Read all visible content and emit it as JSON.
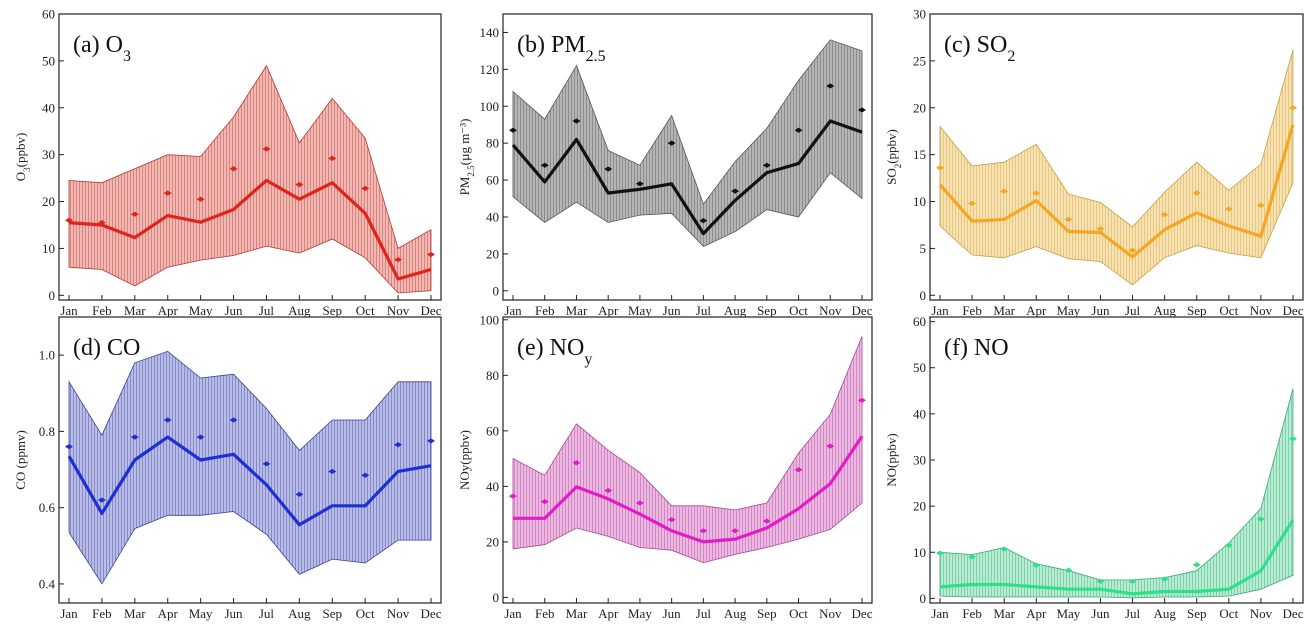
{
  "figure": {
    "months": [
      "Jan",
      "Feb",
      "Mar",
      "Apr",
      "May",
      "Jun",
      "Jul",
      "Aug",
      "Sep",
      "Oct",
      "Nov",
      "Dec"
    ]
  },
  "chart_data": [
    {
      "id": "o3",
      "type": "line",
      "title": "(a) O",
      "title_sub": "3",
      "ylabel": "O",
      "ylabel_sub": "3",
      "ylabel_tail": "(ppbv)",
      "ylim": [
        -1,
        60
      ],
      "yticks": [
        0,
        10,
        20,
        30,
        40,
        50,
        60
      ],
      "colors": {
        "line": "#e0231b",
        "fill": "#f2b8b4",
        "stroke": "#b23a33",
        "diamond": "#e0231b"
      },
      "series": [
        {
          "name": "mean",
          "values": [
            15.5,
            15.0,
            12.3,
            17.0,
            15.6,
            18.3,
            24.5,
            20.5,
            24.0,
            17.5,
            3.5,
            5.5
          ]
        },
        {
          "name": "upper",
          "values": [
            24.5,
            24.0,
            27.0,
            30.0,
            29.6,
            38.0,
            49.0,
            32.5,
            42.0,
            33.5,
            10.0,
            14.0
          ]
        },
        {
          "name": "lower",
          "values": [
            6.0,
            5.5,
            2.0,
            6.0,
            7.5,
            8.5,
            10.5,
            9.0,
            12.0,
            8.0,
            0.5,
            1.0
          ]
        },
        {
          "name": "point",
          "values": [
            16.0,
            15.5,
            17.3,
            21.8,
            20.5,
            27.0,
            31.2,
            23.6,
            29.2,
            22.8,
            7.6,
            8.7
          ]
        }
      ]
    },
    {
      "id": "pm25",
      "type": "line",
      "title": "(b) PM",
      "title_sub": "2.5",
      "ylabel": "PM",
      "ylabel_sub": "2.5",
      "ylabel_tail": "(µg m⁻³)",
      "ylim": [
        -5,
        150
      ],
      "yticks": [
        0,
        20,
        40,
        60,
        80,
        100,
        120,
        140
      ],
      "colors": {
        "line": "#111111",
        "fill": "#b5b5b5",
        "stroke": "#555555",
        "diamond": "#111111"
      },
      "series": [
        {
          "name": "mean",
          "values": [
            79,
            59,
            82,
            53,
            55,
            58,
            31,
            49,
            64,
            69,
            92,
            86
          ]
        },
        {
          "name": "upper",
          "values": [
            108,
            93,
            122,
            76,
            68,
            95,
            47,
            70,
            88,
            114,
            136,
            130
          ]
        },
        {
          "name": "lower",
          "values": [
            51,
            37,
            48,
            37,
            41,
            42,
            24,
            32,
            44,
            40,
            64,
            50
          ]
        },
        {
          "name": "point",
          "values": [
            87,
            68,
            92,
            66,
            58,
            80,
            38,
            54,
            68,
            87,
            111,
            98
          ]
        }
      ]
    },
    {
      "id": "so2",
      "type": "line",
      "title": "(c) SO",
      "title_sub": "2",
      "ylabel": "SO",
      "ylabel_sub": "2",
      "ylabel_tail": "(ppbv)",
      "ylim": [
        -0.5,
        30
      ],
      "yticks": [
        0,
        5,
        10,
        15,
        20,
        25,
        30
      ],
      "colors": {
        "line": "#f5a623",
        "fill": "#f7e2b0",
        "stroke": "#c9a14a",
        "diamond": "#f5a623"
      },
      "series": [
        {
          "name": "mean",
          "values": [
            11.8,
            7.9,
            8.1,
            10.1,
            6.8,
            6.7,
            4.1,
            7.0,
            8.8,
            7.4,
            6.3,
            18.2
          ]
        },
        {
          "name": "upper",
          "values": [
            18.0,
            13.8,
            14.2,
            16.1,
            10.8,
            9.9,
            7.3,
            11.0,
            14.2,
            11.2,
            14.0,
            26.2
          ]
        },
        {
          "name": "lower",
          "values": [
            7.4,
            4.3,
            4.0,
            5.2,
            3.9,
            3.6,
            1.1,
            4.0,
            5.3,
            4.5,
            4.0,
            12.0
          ]
        },
        {
          "name": "point",
          "values": [
            13.6,
            9.8,
            11.1,
            10.9,
            8.1,
            7.1,
            4.8,
            8.6,
            10.9,
            9.2,
            9.6,
            20.0
          ]
        }
      ]
    },
    {
      "id": "co",
      "type": "line",
      "title": "(d) CO",
      "title_sub": "",
      "ylabel": "CO (ppmv)",
      "ylabel_sub": "",
      "ylabel_tail": "",
      "ylim": [
        0.35,
        1.1
      ],
      "yticks": [
        0.4,
        0.6,
        0.8,
        1.0
      ],
      "ytick_decimals": 1,
      "colors": {
        "line": "#1f2fd6",
        "fill": "#b9bde8",
        "stroke": "#3a4296",
        "diamond": "#1f2fd6"
      },
      "series": [
        {
          "name": "mean",
          "values": [
            0.735,
            0.585,
            0.725,
            0.785,
            0.725,
            0.74,
            0.66,
            0.555,
            0.605,
            0.605,
            0.695,
            0.71
          ]
        },
        {
          "name": "upper",
          "values": [
            0.93,
            0.79,
            0.98,
            1.01,
            0.94,
            0.95,
            0.86,
            0.75,
            0.83,
            0.83,
            0.93,
            0.93
          ]
        },
        {
          "name": "lower",
          "values": [
            0.535,
            0.4,
            0.545,
            0.58,
            0.58,
            0.59,
            0.53,
            0.425,
            0.465,
            0.455,
            0.515,
            0.515
          ]
        },
        {
          "name": "point",
          "values": [
            0.76,
            0.62,
            0.785,
            0.83,
            0.785,
            0.83,
            0.715,
            0.635,
            0.695,
            0.685,
            0.765,
            0.775
          ]
        }
      ]
    },
    {
      "id": "noy",
      "type": "line",
      "title": "(e) NO",
      "title_sub": "y",
      "ylabel": "NOy(ppbv)",
      "ylabel_sub": "",
      "ylabel_tail": "",
      "ylim": [
        -2,
        101
      ],
      "yticks": [
        0,
        20,
        40,
        60,
        80,
        100
      ],
      "colors": {
        "line": "#e11cc8",
        "fill": "#edb9e2",
        "stroke": "#a64a96",
        "diamond": "#e11cc8"
      },
      "series": [
        {
          "name": "mean",
          "values": [
            28.5,
            28.5,
            39.8,
            35.5,
            30.0,
            24.0,
            20.0,
            21.0,
            25.0,
            32.0,
            41.0,
            58.0
          ]
        },
        {
          "name": "upper",
          "values": [
            50.0,
            44.0,
            62.5,
            53.0,
            45.0,
            33.0,
            33.0,
            31.5,
            34.0,
            52.0,
            66.0,
            94.0
          ]
        },
        {
          "name": "lower",
          "values": [
            17.5,
            19.0,
            25.0,
            22.0,
            18.0,
            17.0,
            12.5,
            15.5,
            18.0,
            21.0,
            24.5,
            34.0
          ]
        },
        {
          "name": "point",
          "values": [
            36.5,
            34.5,
            48.5,
            38.5,
            34.0,
            28.0,
            24.0,
            24.0,
            27.5,
            46.0,
            54.5,
            71.0
          ]
        }
      ]
    },
    {
      "id": "no",
      "type": "line",
      "title": "(f) NO",
      "title_sub": "",
      "ylabel": "NO(ppbv)",
      "ylabel_sub": "",
      "ylabel_tail": "",
      "ylim": [
        -1,
        61
      ],
      "yticks": [
        0,
        10,
        20,
        30,
        40,
        50,
        60
      ],
      "colors": {
        "line": "#2ee08c",
        "fill": "#b6ecd2",
        "stroke": "#3fa878",
        "diamond": "#2ee08c"
      },
      "series": [
        {
          "name": "mean",
          "values": [
            2.5,
            3.0,
            3.0,
            2.5,
            2.0,
            2.0,
            1.0,
            1.5,
            1.5,
            2.0,
            6.0,
            17.0
          ]
        },
        {
          "name": "upper",
          "values": [
            10.0,
            9.5,
            11.0,
            7.5,
            6.0,
            4.0,
            4.0,
            4.5,
            6.0,
            12.0,
            19.5,
            45.5
          ]
        },
        {
          "name": "lower",
          "values": [
            0.5,
            0.3,
            0.3,
            0.3,
            0.3,
            0.3,
            0.1,
            0.3,
            0.3,
            0.5,
            2.0,
            5.0
          ]
        },
        {
          "name": "point",
          "values": [
            9.8,
            9.0,
            10.7,
            7.2,
            6.1,
            3.7,
            3.7,
            4.2,
            7.3,
            11.5,
            17.2,
            34.6
          ]
        }
      ]
    }
  ]
}
